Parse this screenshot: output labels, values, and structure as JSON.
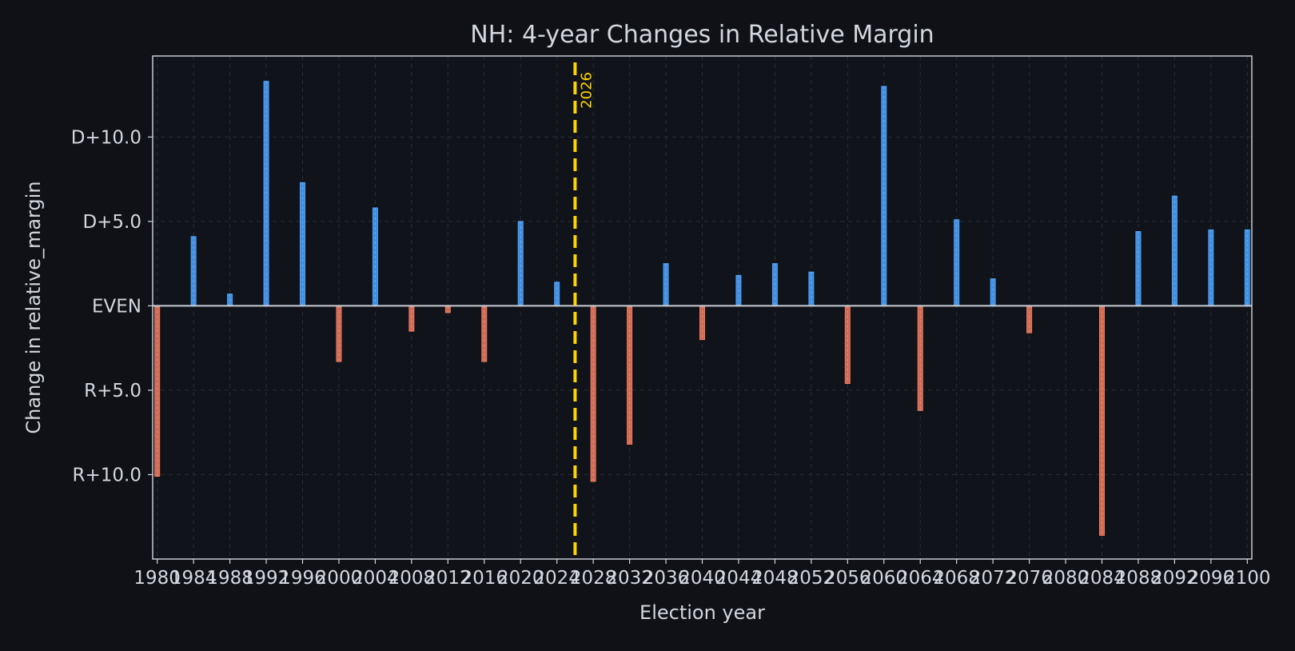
{
  "colors": {
    "background": "#0f1117",
    "plot_background": "#10131a",
    "text": "#d3d7de",
    "axis_line": "#d3d7de",
    "grid": "#2a2e36",
    "zero_line": "#c8ccd4",
    "positive_bar": "#4aa3ff",
    "negative_bar": "#f07a5f",
    "marker": "#ffd400"
  },
  "chart_data": {
    "type": "bar",
    "title": "NH: 4-year Changes in Relative Margin",
    "xlabel": "Election year",
    "ylabel": "Change in relative_margin",
    "xlim": [
      1979.5,
      2100.5
    ],
    "ylim": [
      -15,
      14.8
    ],
    "x_ticks": [
      1980,
      1984,
      1988,
      1992,
      1996,
      2000,
      2004,
      2008,
      2012,
      2016,
      2020,
      2024,
      2028,
      2032,
      2036,
      2040,
      2044,
      2048,
      2052,
      2056,
      2060,
      2064,
      2068,
      2072,
      2076,
      2080,
      2084,
      2088,
      2092,
      2096,
      2100
    ],
    "y_ticks": [
      {
        "value": 10,
        "label": "D+10.0"
      },
      {
        "value": 5,
        "label": "D+5.0"
      },
      {
        "value": 0,
        "label": "EVEN"
      },
      {
        "value": -5,
        "label": "R+5.0"
      },
      {
        "value": -10,
        "label": "R+10.0"
      }
    ],
    "grid": true,
    "reference_line": {
      "x": 2026,
      "label": "2026"
    },
    "x": [
      1980,
      1984,
      1988,
      1992,
      1996,
      2000,
      2004,
      2008,
      2012,
      2016,
      2020,
      2024,
      2028,
      2032,
      2036,
      2040,
      2044,
      2048,
      2052,
      2056,
      2060,
      2064,
      2068,
      2072,
      2076,
      2080,
      2084,
      2088,
      2092,
      2096,
      2100
    ],
    "values": [
      -10.1,
      4.1,
      0.7,
      13.3,
      7.3,
      -3.3,
      5.8,
      -1.5,
      -0.4,
      -3.3,
      5.0,
      1.4,
      -10.4,
      -8.2,
      2.5,
      -2.0,
      1.8,
      2.5,
      2.0,
      -4.6,
      13.0,
      -6.2,
      5.1,
      1.6,
      -1.6,
      0,
      -13.6,
      4.4,
      6.5,
      4.5,
      4.5
    ]
  }
}
